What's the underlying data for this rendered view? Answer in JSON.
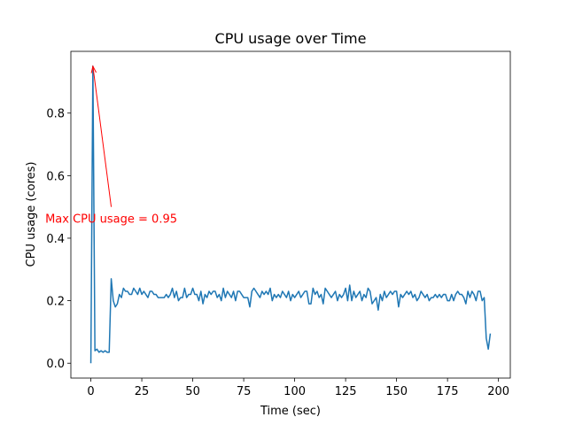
{
  "chart_data": {
    "type": "line",
    "title": "CPU usage over Time",
    "xlabel": "Time (sec)",
    "ylabel": "CPU usage (cores)",
    "x": [
      0,
      1,
      2,
      3,
      4,
      5,
      6,
      7,
      8,
      9,
      10,
      11,
      12,
      13,
      14,
      15,
      16,
      17,
      18,
      19,
      20,
      21,
      22,
      23,
      24,
      25,
      26,
      27,
      28,
      29,
      30,
      31,
      32,
      33,
      34,
      35,
      36,
      37,
      38,
      39,
      40,
      41,
      42,
      43,
      44,
      45,
      46,
      47,
      48,
      49,
      50,
      51,
      52,
      53,
      54,
      55,
      56,
      57,
      58,
      59,
      60,
      61,
      62,
      63,
      64,
      65,
      66,
      67,
      68,
      69,
      70,
      71,
      72,
      73,
      74,
      75,
      76,
      77,
      78,
      79,
      80,
      81,
      82,
      83,
      84,
      85,
      86,
      87,
      88,
      89,
      90,
      91,
      92,
      93,
      94,
      95,
      96,
      97,
      98,
      99,
      100,
      101,
      102,
      103,
      104,
      105,
      106,
      107,
      108,
      109,
      110,
      111,
      112,
      113,
      114,
      115,
      116,
      117,
      118,
      119,
      120,
      121,
      122,
      123,
      124,
      125,
      126,
      127,
      128,
      129,
      130,
      131,
      132,
      133,
      134,
      135,
      136,
      137,
      138,
      139,
      140,
      141,
      142,
      143,
      144,
      145,
      146,
      147,
      148,
      149,
      150,
      151,
      152,
      153,
      154,
      155,
      156,
      157,
      158,
      159,
      160,
      161,
      162,
      163,
      164,
      165,
      166,
      167,
      168,
      169,
      170,
      171,
      172,
      173,
      174,
      175,
      176,
      177,
      178,
      179,
      180,
      181,
      182,
      183,
      184,
      185,
      186,
      187,
      188,
      189,
      190,
      191,
      192,
      193,
      194,
      195,
      196
    ],
    "series": [
      {
        "name": "CPU usage",
        "color": "#1f77b4",
        "values": [
          0,
          0.95,
          0.04,
          0.045,
          0.035,
          0.04,
          0.035,
          0.04,
          0.035,
          0.035,
          0.27,
          0.2,
          0.18,
          0.19,
          0.22,
          0.21,
          0.24,
          0.23,
          0.23,
          0.22,
          0.22,
          0.24,
          0.23,
          0.22,
          0.24,
          0.22,
          0.23,
          0.22,
          0.21,
          0.23,
          0.23,
          0.22,
          0.22,
          0.21,
          0.21,
          0.21,
          0.21,
          0.22,
          0.21,
          0.22,
          0.24,
          0.21,
          0.23,
          0.2,
          0.21,
          0.21,
          0.24,
          0.21,
          0.22,
          0.22,
          0.24,
          0.22,
          0.22,
          0.2,
          0.23,
          0.19,
          0.22,
          0.21,
          0.23,
          0.22,
          0.23,
          0.23,
          0.21,
          0.22,
          0.2,
          0.24,
          0.21,
          0.23,
          0.22,
          0.21,
          0.23,
          0.2,
          0.23,
          0.23,
          0.22,
          0.21,
          0.21,
          0.21,
          0.18,
          0.23,
          0.24,
          0.23,
          0.22,
          0.21,
          0.23,
          0.22,
          0.23,
          0.22,
          0.24,
          0.2,
          0.22,
          0.21,
          0.22,
          0.21,
          0.23,
          0.22,
          0.21,
          0.23,
          0.2,
          0.22,
          0.21,
          0.22,
          0.23,
          0.21,
          0.22,
          0.23,
          0.23,
          0.19,
          0.19,
          0.24,
          0.22,
          0.23,
          0.21,
          0.22,
          0.19,
          0.24,
          0.23,
          0.22,
          0.21,
          0.22,
          0.23,
          0.2,
          0.22,
          0.21,
          0.22,
          0.24,
          0.2,
          0.25,
          0.2,
          0.23,
          0.21,
          0.22,
          0.23,
          0.2,
          0.22,
          0.21,
          0.24,
          0.23,
          0.19,
          0.2,
          0.21,
          0.17,
          0.22,
          0.2,
          0.23,
          0.21,
          0.22,
          0.23,
          0.22,
          0.23,
          0.23,
          0.18,
          0.22,
          0.21,
          0.22,
          0.23,
          0.22,
          0.23,
          0.21,
          0.22,
          0.2,
          0.21,
          0.23,
          0.22,
          0.21,
          0.22,
          0.2,
          0.21,
          0.21,
          0.22,
          0.21,
          0.22,
          0.21,
          0.22,
          0.22,
          0.2,
          0.2,
          0.22,
          0.2,
          0.22,
          0.23,
          0.22,
          0.22,
          0.21,
          0.19,
          0.23,
          0.21,
          0.23,
          0.22,
          0.2,
          0.23,
          0.23,
          0.2,
          0.21,
          0.08,
          0.045,
          0.095
        ]
      }
    ],
    "xlim": [
      -9.8,
      205.8
    ],
    "ylim": [
      -0.0475,
      0.9975
    ],
    "xticks": [
      0,
      25,
      50,
      75,
      100,
      125,
      150,
      175,
      200
    ],
    "yticks": [
      {
        "value": 0,
        "label": "0.0"
      },
      0.2,
      0.4,
      0.6,
      0.8
    ],
    "annotations": [
      {
        "text": "Max CPU usage = 0.95",
        "xy": [
          1,
          0.95
        ],
        "xytext": [
          10,
          0.5
        ],
        "color": "red"
      }
    ]
  }
}
